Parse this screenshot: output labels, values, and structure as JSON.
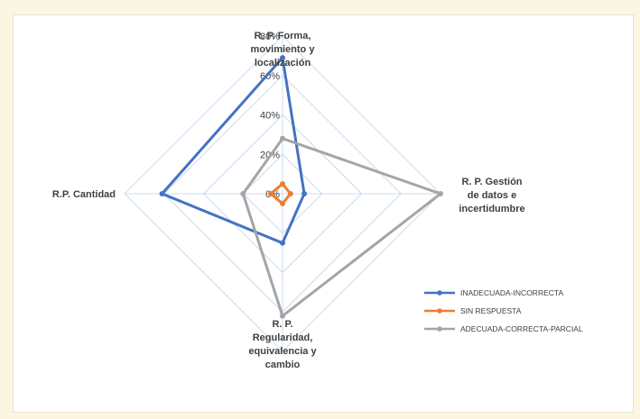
{
  "chart_data": {
    "type": "radar",
    "axes": [
      "R. P. Forma, movimiento y localización",
      "R. P. Gestión de datos e incertidumbre",
      "R. P. Regularidad, equivalencia y cambio",
      "R.P. Cantidad"
    ],
    "axis_label_lines": [
      [
        "R. P. Forma,",
        "movimiento y",
        "localización"
      ],
      [
        "R. P. Gestión",
        "de datos e",
        "incertidumbre"
      ],
      [
        "R. P.",
        "Regularidad,",
        "equivalencia y",
        "cambio"
      ],
      [
        "R.P. Cantidad"
      ]
    ],
    "ticks": [
      "0%",
      "20%",
      "40%",
      "60%",
      "80%"
    ],
    "range": [
      0,
      80
    ],
    "series": [
      {
        "name": "INADECUADA-INCORRECTA",
        "color": "#4472c4",
        "values": [
          69,
          11,
          25,
          61
        ]
      },
      {
        "name": "SIN RESPUESTA",
        "color": "#ed7d31",
        "values": [
          5,
          4,
          5,
          6
        ]
      },
      {
        "name": "ADECUADA-CORRECTA-PARCIAL",
        "color": "#a5a5a5",
        "values": [
          28,
          80,
          62,
          20
        ]
      }
    ],
    "grid": true,
    "legend_position": "bottom-right"
  }
}
